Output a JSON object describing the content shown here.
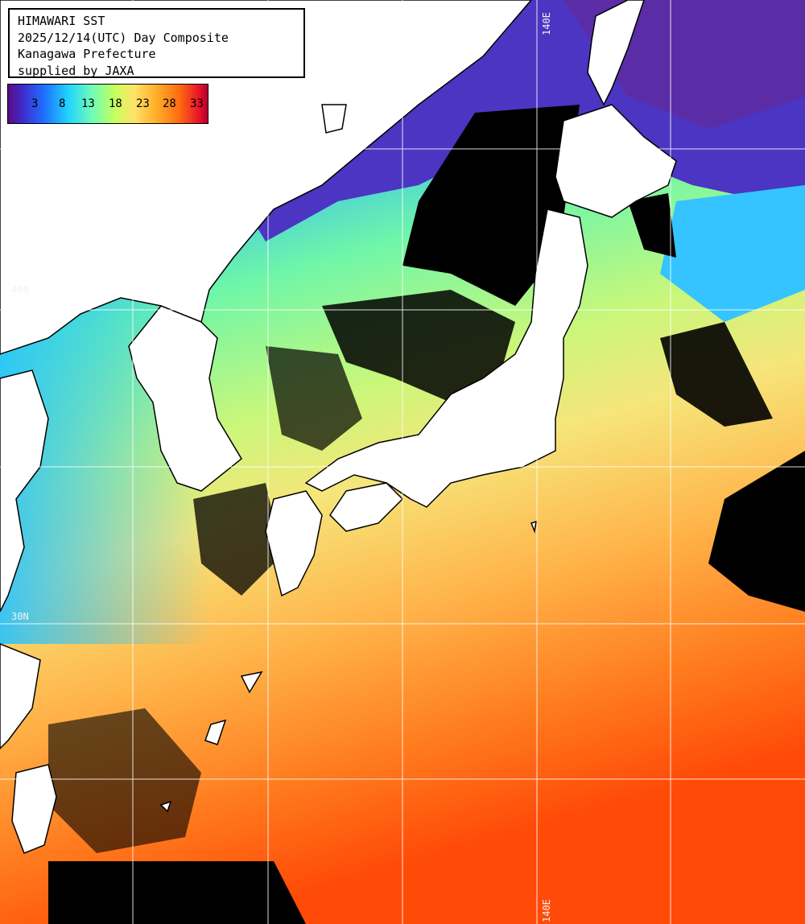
{
  "title": {
    "line1": "HIMAWARI SST",
    "line2": "2025/12/14(UTC) Day Composite",
    "line3": "Kanagawa Prefecture",
    "line4": "supplied by JAXA"
  },
  "legend": {
    "ticks": [
      "3",
      "8",
      "13",
      "18",
      "23",
      "28",
      "33"
    ]
  },
  "grid_labels": {
    "lon_140": "140E",
    "lat_40": "40N",
    "lat_30": "30N"
  },
  "colors": {
    "land": "#ffffff",
    "cloud": "#000000",
    "grid": "#ffffff",
    "cold": "#3a3ccf",
    "cool": "#38b6ff",
    "mild": "#7dfc9a",
    "warm": "#f7ef7a",
    "hot": "#ff8a1a",
    "hottest": "#ff4a08"
  }
}
